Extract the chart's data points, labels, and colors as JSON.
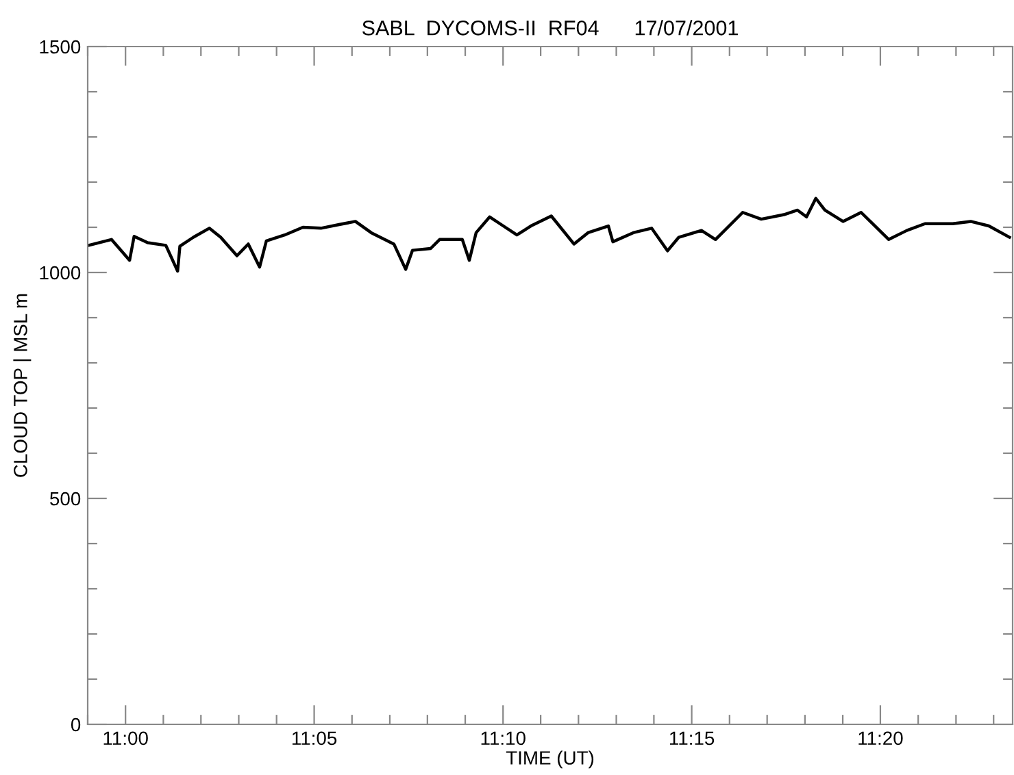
{
  "chart_data": {
    "type": "line",
    "title": "SABL  DYCOMS-II  RF04      17/07/2001",
    "xlabel": "TIME (UT)",
    "ylabel": "CLOUD TOP | MSL m",
    "x": [
      10.9837,
      10.9938,
      11.0018,
      11.0038,
      11.0098,
      11.0178,
      11.023,
      11.024,
      11.03,
      11.037,
      11.042,
      11.0492,
      11.0542,
      11.0592,
      11.0622,
      11.0703,
      11.0783,
      11.0863,
      11.0943,
      11.1015,
      11.1085,
      11.1185,
      11.1237,
      11.1267,
      11.1347,
      11.1387,
      11.1487,
      11.1518,
      11.1548,
      11.1608,
      11.1668,
      11.1728,
      11.179,
      11.188,
      11.198,
      11.2042,
      11.2132,
      11.2152,
      11.2242,
      11.2323,
      11.2393,
      11.2443,
      11.2543,
      11.2605,
      11.2725,
      11.2807,
      11.2907,
      11.2967,
      11.3007,
      11.3048,
      11.3088,
      11.3168,
      11.3248,
      11.337,
      11.345,
      11.353,
      11.3652,
      11.3732,
      11.3812,
      11.3903
    ],
    "series": [
      {
        "color": "#000000",
        "values": [
          1060,
          1073,
          1027,
          1080,
          1066,
          1060,
          1003,
          1058,
          1078,
          1098,
          1078,
          1037,
          1063,
          1012,
          1070,
          1083,
          1100,
          1098,
          1106,
          1113,
          1088,
          1063,
          1007,
          1049,
          1053,
          1073,
          1073,
          1027,
          1088,
          1123,
          1103,
          1083,
          1103,
          1125,
          1063,
          1088,
          1103,
          1068,
          1088,
          1098,
          1048,
          1078,
          1093,
          1073,
          1133,
          1118,
          1128,
          1138,
          1123,
          1164,
          1138,
          1113,
          1133,
          1073,
          1093,
          1108,
          1108,
          1113,
          1103,
          1078
        ]
      }
    ],
    "xlim": [
      10.9833,
      11.3917
    ],
    "ylim": [
      0,
      1500
    ],
    "xticks": [
      {
        "value": 10.9833,
        "label": null
      },
      {
        "value": 11,
        "label": "11:00"
      },
      {
        "value": 11.0167,
        "label": null
      },
      {
        "value": 11.0333,
        "label": null
      },
      {
        "value": 11.05,
        "label": null
      },
      {
        "value": 11.0667,
        "label": null
      },
      {
        "value": 11.0833,
        "label": "11:05"
      },
      {
        "value": 11.1,
        "label": null
      },
      {
        "value": 11.1167,
        "label": null
      },
      {
        "value": 11.1333,
        "label": null
      },
      {
        "value": 11.15,
        "label": null
      },
      {
        "value": 11.1667,
        "label": "11:10"
      },
      {
        "value": 11.1833,
        "label": null
      },
      {
        "value": 11.2,
        "label": null
      },
      {
        "value": 11.2167,
        "label": null
      },
      {
        "value": 11.2333,
        "label": null
      },
      {
        "value": 11.25,
        "label": "11:15"
      },
      {
        "value": 11.2667,
        "label": null
      },
      {
        "value": 11.2833,
        "label": null
      },
      {
        "value": 11.3,
        "label": null
      },
      {
        "value": 11.3167,
        "label": null
      },
      {
        "value": 11.3333,
        "label": "11:20"
      },
      {
        "value": 11.35,
        "label": null
      },
      {
        "value": 11.3667,
        "label": null
      },
      {
        "value": 11.3833,
        "label": null
      }
    ],
    "yticks": [
      0,
      {
        "value": 100,
        "label": null
      },
      {
        "value": 200,
        "label": null
      },
      {
        "value": 300,
        "label": null
      },
      {
        "value": 400,
        "label": null
      },
      500,
      {
        "value": 600,
        "label": null
      },
      {
        "value": 700,
        "label": null
      },
      {
        "value": 800,
        "label": null
      },
      {
        "value": 900,
        "label": null
      },
      1000,
      {
        "value": 1100,
        "label": null
      },
      {
        "value": 1200,
        "label": null
      },
      {
        "value": 1300,
        "label": null
      },
      {
        "value": 1400,
        "label": null
      },
      1500
    ],
    "grid": false,
    "legend": false,
    "marker": "none",
    "line_style": "solid"
  }
}
